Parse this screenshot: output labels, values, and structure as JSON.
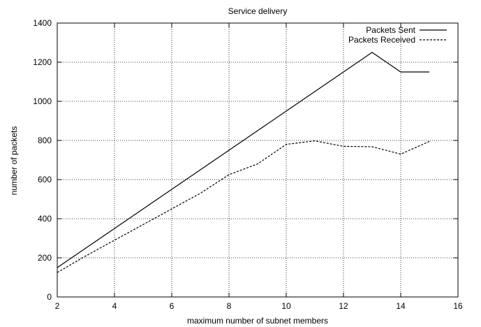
{
  "chart_data": {
    "type": "line",
    "title": "Service delivery",
    "xlabel": "maximum number of subnet members",
    "ylabel": "number of packets",
    "xlim": [
      2,
      16
    ],
    "ylim": [
      0,
      1400
    ],
    "xticks": [
      2,
      4,
      6,
      8,
      10,
      12,
      14,
      16
    ],
    "yticks": [
      0,
      200,
      400,
      600,
      800,
      1000,
      1200,
      1400
    ],
    "grid": true,
    "legend_position": "top-right",
    "series": [
      {
        "name": "Packets Sent",
        "style": "solid",
        "x": [
          2,
          3,
          4,
          5,
          6,
          7,
          8,
          9,
          10,
          11,
          12,
          13,
          14,
          15
        ],
        "values": [
          150,
          250,
          350,
          450,
          550,
          650,
          750,
          850,
          950,
          1050,
          1150,
          1250,
          1150,
          1150
        ]
      },
      {
        "name": "Packets Received",
        "style": "dashed",
        "x": [
          2,
          3,
          4,
          5,
          6,
          7,
          8,
          9,
          10,
          11,
          12,
          13,
          14,
          15
        ],
        "values": [
          125,
          210,
          290,
          370,
          450,
          530,
          625,
          680,
          780,
          798,
          770,
          768,
          730,
          795
        ]
      }
    ]
  }
}
